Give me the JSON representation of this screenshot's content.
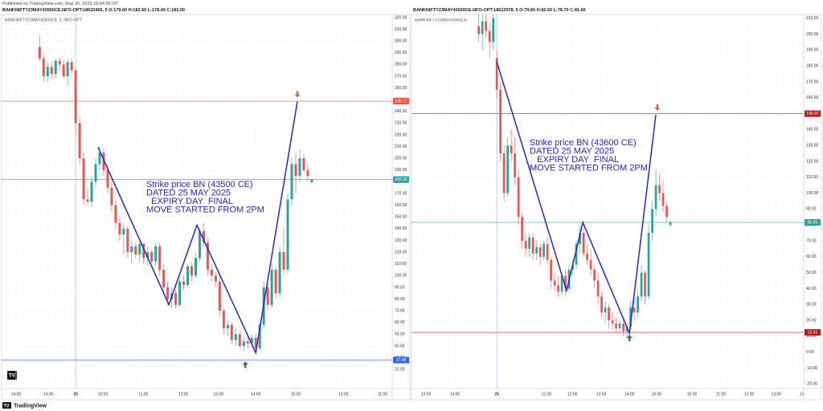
{
  "header": {
    "published": "Published on TradingView.com, May 25, 2023 16:54:09 IST"
  },
  "footer": {
    "brand": "TradingView"
  },
  "chart_data": [
    {
      "type": "candlestick",
      "title": "BANKNIFTY23MAY43500CE.NFO-OPT:18622466, 5 O:179.60 H:182.60 L:178.40 C:182.00",
      "subtitle": "BANKNIFTY23MAY43500CE, 5, NFO-OPT",
      "up_color": "#26a69a",
      "down_color": "#ef5350",
      "grid": true,
      "x": [
        -9,
        -8,
        -7,
        -6,
        -5,
        -4,
        -3,
        -2,
        -1,
        0,
        1,
        2,
        3,
        4,
        5,
        6,
        7,
        8,
        9,
        10,
        11,
        12,
        13,
        14,
        15,
        16,
        17,
        18,
        19,
        20,
        21,
        22,
        23,
        24,
        25,
        26,
        27,
        28,
        29,
        30,
        31,
        32,
        33,
        34,
        35,
        36,
        37,
        38,
        39,
        40,
        41,
        42,
        43,
        44,
        45,
        46,
        47,
        48,
        49,
        50,
        51,
        52,
        53,
        54,
        55,
        56,
        57,
        58,
        59
      ],
      "open": [
        295,
        285,
        270,
        278,
        272,
        283,
        280,
        270,
        282,
        275,
        230,
        200,
        165,
        163,
        180,
        195,
        205,
        190,
        175,
        160,
        145,
        135,
        140,
        120,
        125,
        118,
        127,
        115,
        120,
        112,
        125,
        105,
        90,
        80,
        85,
        75,
        95,
        92,
        108,
        100,
        115,
        138,
        128,
        105,
        100,
        95,
        70,
        55,
        58,
        45,
        50,
        40,
        44,
        42,
        47,
        38,
        58,
        90,
        75,
        105,
        85,
        120,
        105,
        165,
        195,
        185,
        200,
        190,
        179.6
      ],
      "high": [
        305,
        288,
        282,
        282,
        285,
        286,
        284,
        285,
        286,
        278,
        235,
        205,
        175,
        185,
        200,
        210,
        208,
        195,
        180,
        165,
        150,
        145,
        142,
        130,
        128,
        130,
        128,
        125,
        122,
        128,
        128,
        110,
        95,
        90,
        88,
        98,
        100,
        110,
        112,
        120,
        140,
        145,
        132,
        110,
        103,
        100,
        72,
        62,
        60,
        55,
        53,
        48,
        48,
        50,
        50,
        60,
        95,
        100,
        110,
        108,
        125,
        140,
        170,
        200,
        205,
        208,
        204,
        195,
        182.6
      ],
      "low": [
        283,
        265,
        265,
        268,
        268,
        275,
        268,
        262,
        272,
        220,
        195,
        160,
        160,
        158,
        175,
        190,
        185,
        170,
        155,
        140,
        130,
        118,
        115,
        110,
        115,
        112,
        110,
        108,
        110,
        108,
        100,
        85,
        75,
        72,
        72,
        73,
        88,
        90,
        95,
        98,
        112,
        125,
        100,
        95,
        90,
        65,
        50,
        48,
        42,
        40,
        38,
        36,
        38,
        40,
        35,
        36,
        55,
        70,
        72,
        80,
        82,
        100,
        102,
        160,
        170,
        180,
        188,
        180,
        178.4
      ],
      "close": [
        285,
        270,
        278,
        272,
        283,
        280,
        270,
        282,
        275,
        230,
        200,
        165,
        163,
        180,
        195,
        205,
        190,
        175,
        160,
        145,
        135,
        140,
        120,
        125,
        118,
        127,
        115,
        120,
        112,
        125,
        105,
        90,
        80,
        85,
        75,
        95,
        92,
        108,
        100,
        115,
        138,
        128,
        105,
        100,
        95,
        70,
        55,
        58,
        45,
        50,
        40,
        44,
        42,
        47,
        38,
        58,
        90,
        75,
        105,
        85,
        120,
        105,
        165,
        195,
        185,
        200,
        190,
        185,
        182
      ],
      "xlim": [
        -18.5,
        79.1
      ],
      "xticks": [
        {
          "value": -14.9,
          "label": "14:00"
        },
        {
          "value": -6.8,
          "label": "14:45"
        },
        {
          "value": 0,
          "label": "25"
        },
        {
          "value": 6.8,
          "label": "10:00"
        },
        {
          "value": 16.9,
          "label": "11:00"
        },
        {
          "value": 26.9,
          "label": "12:00"
        },
        {
          "value": 35.7,
          "label": "13:00"
        },
        {
          "value": 45,
          "label": "14:00"
        },
        {
          "value": 55,
          "label": "15:00"
        },
        {
          "value": 66.9,
          "label": "10:00"
        },
        {
          "value": 76.7,
          "label": "11:00"
        }
      ],
      "ylim": [
        3.7,
        322.7
      ],
      "yticks": [
        {
          "value": 20,
          "label": "20.00"
        },
        {
          "value": 30,
          "label": "30.00"
        },
        {
          "value": 40,
          "label": "40.00"
        },
        {
          "value": 50,
          "label": "50.00"
        },
        {
          "value": 60,
          "label": "60.00"
        },
        {
          "value": 70,
          "label": "70.00"
        },
        {
          "value": 80,
          "label": "80.00"
        },
        {
          "value": 90,
          "label": "90.00"
        },
        {
          "value": 100,
          "label": "100.00"
        },
        {
          "value": 110,
          "label": "110.00"
        },
        {
          "value": 120,
          "label": "120.00"
        },
        {
          "value": 130,
          "label": "130.00"
        },
        {
          "value": 140,
          "label": "140.00"
        },
        {
          "value": 150,
          "label": "150.00"
        },
        {
          "value": 160,
          "label": "160.00"
        },
        {
          "value": 170,
          "label": "170.00"
        },
        {
          "value": 180,
          "label": "180.00"
        },
        {
          "value": 190,
          "label": "190.00"
        },
        {
          "value": 200,
          "label": "200.00"
        },
        {
          "value": 210,
          "label": "210.00"
        },
        {
          "value": 220,
          "label": "220.00"
        },
        {
          "value": 230,
          "label": "230.00"
        },
        {
          "value": 240,
          "label": "240.00"
        },
        {
          "value": 250,
          "label": "250.00"
        },
        {
          "value": 260,
          "label": "260.00"
        },
        {
          "value": 270,
          "label": "270.00"
        },
        {
          "value": 280,
          "label": "280.00"
        },
        {
          "value": 290,
          "label": "290.00"
        },
        {
          "value": 300,
          "label": "300.00"
        },
        {
          "value": 310,
          "label": "310.00"
        },
        {
          "value": 320,
          "label": "320.00"
        }
      ],
      "levels": [
        {
          "value": 248.71,
          "color": "#ef5350"
        },
        {
          "value": 182,
          "label": "182.00",
          "color": "#26a69a"
        },
        {
          "value": 27.98,
          "color": "#2962ff"
        }
      ],
      "session_line": {
        "x": 0,
        "color": "#90b0ff"
      },
      "drawing": {
        "x": [
          5.6,
          23.3,
          30.3,
          45,
          55.4
        ],
        "y": [
          209.4,
          75.2,
          143,
          34.2,
          248.4
        ],
        "color": "#2424d8"
      },
      "markers": [
        {
          "x": 55.4,
          "y": 254.6,
          "direction": "down",
          "color": "#e0603a"
        },
        {
          "x": 42.4,
          "y": 24,
          "direction": "up",
          "color": "#2e7d32"
        }
      ],
      "annotation": [
        "Strike price BN (43500 CE)",
        "DATED 25 MAY 2025",
        "  EXPIRY DAY  FINAL",
        "MOVE STARTED FROM 2PM"
      ]
    },
    {
      "type": "candlestick",
      "title": "BANKNIFTY23MAY43600CE.NFO-OPT:18622978, 5 O:79.80 H:82.60 L:78.70 C:81.60",
      "subtitle": "BANKNIFTY23MAY43600CE",
      "up_color": "#26a69a",
      "down_color": "#ef5350",
      "grid": true,
      "x": [
        -5,
        -4,
        -3,
        -2,
        -1,
        0,
        1,
        2,
        3,
        4,
        5,
        6,
        7,
        8,
        9,
        10,
        11,
        12,
        13,
        14,
        15,
        16,
        17,
        18,
        19,
        20,
        21,
        22,
        23,
        24,
        25,
        26,
        27,
        28,
        29,
        30,
        31,
        32,
        33,
        34,
        35,
        36,
        37,
        38,
        39,
        40,
        41,
        42,
        43,
        44,
        45,
        46,
        47,
        48
      ],
      "open": [
        205,
        200,
        208,
        202,
        195,
        185,
        165,
        125,
        100,
        130,
        125,
        110,
        85,
        70,
        65,
        72,
        62,
        66,
        60,
        68,
        58,
        45,
        42,
        38,
        48,
        40,
        52,
        55,
        68,
        75,
        62,
        58,
        52,
        45,
        35,
        25,
        28,
        20,
        18,
        15,
        18,
        13,
        16,
        28,
        25,
        35,
        50,
        35,
        75,
        90,
        105,
        100,
        92,
        79.8
      ],
      "high": [
        213,
        212,
        213,
        208,
        215,
        190,
        170,
        130,
        135,
        140,
        135,
        115,
        88,
        75,
        75,
        75,
        70,
        68,
        70,
        72,
        60,
        50,
        48,
        50,
        52,
        55,
        58,
        70,
        80,
        78,
        68,
        65,
        55,
        50,
        38,
        32,
        30,
        25,
        22,
        20,
        20,
        18,
        32,
        35,
        40,
        55,
        52,
        80,
        95,
        115,
        112,
        108,
        95,
        82.6
      ],
      "low": [
        195,
        190,
        198,
        185,
        190,
        160,
        120,
        95,
        98,
        120,
        105,
        80,
        65,
        60,
        60,
        58,
        58,
        55,
        58,
        55,
        40,
        38,
        35,
        36,
        35,
        38,
        48,
        52,
        62,
        60,
        55,
        48,
        40,
        30,
        22,
        18,
        15,
        14,
        12,
        12,
        10,
        8,
        14,
        20,
        22,
        32,
        30,
        33,
        70,
        85,
        95,
        88,
        82,
        78.7
      ],
      "close": [
        200,
        208,
        202,
        195,
        210,
        165,
        125,
        100,
        130,
        125,
        110,
        85,
        70,
        65,
        72,
        62,
        66,
        60,
        68,
        58,
        45,
        42,
        38,
        48,
        40,
        52,
        55,
        68,
        75,
        62,
        58,
        52,
        45,
        35,
        25,
        28,
        20,
        18,
        15,
        18,
        13,
        16,
        28,
        25,
        35,
        50,
        35,
        75,
        90,
        105,
        100,
        92,
        85,
        81.6
      ],
      "xlim": [
        -23.6,
        84.9
      ],
      "xticks": [
        {
          "value": -19.6,
          "label": "13:00"
        },
        {
          "value": -11.6,
          "label": "14:00"
        },
        {
          "value": 0,
          "label": "25"
        },
        {
          "value": 13.8,
          "label": "11:00"
        },
        {
          "value": 20.9,
          "label": "12:00"
        },
        {
          "value": 28.9,
          "label": "13:00"
        },
        {
          "value": 36.7,
          "label": "14:00"
        },
        {
          "value": 44.2,
          "label": "15:00"
        },
        {
          "value": 54,
          "label": "10:00"
        },
        {
          "value": 62,
          "label": "11:00"
        },
        {
          "value": 69.8,
          "label": "12:00"
        },
        {
          "value": 77.3,
          "label": "13:00"
        },
        {
          "value": 84.4,
          "label": "14"
        }
      ],
      "ylim": [
        -22.9,
        212.4
      ],
      "yticks": [
        {
          "value": -20,
          "label": "-20.00"
        },
        {
          "value": -10,
          "label": "-10.00"
        },
        {
          "value": 0,
          "label": "0.00"
        },
        {
          "value": 10,
          "label": "10.00"
        },
        {
          "value": 20,
          "label": "20.00"
        },
        {
          "value": 30,
          "label": "30.00"
        },
        {
          "value": 40,
          "label": "40.00"
        },
        {
          "value": 50,
          "label": "50.00"
        },
        {
          "value": 60,
          "label": "60.00"
        },
        {
          "value": 70,
          "label": "70.00"
        },
        {
          "value": 80,
          "label": "80.00"
        },
        {
          "value": 90,
          "label": "90.00"
        },
        {
          "value": 100,
          "label": "100.00"
        },
        {
          "value": 110,
          "label": "110.00"
        },
        {
          "value": 120,
          "label": "120.00"
        },
        {
          "value": 130,
          "label": "130.00"
        },
        {
          "value": 140,
          "label": "140.00"
        },
        {
          "value": 150,
          "label": "150.00"
        },
        {
          "value": 160,
          "label": "160.00"
        },
        {
          "value": 170,
          "label": "170.00"
        },
        {
          "value": 180,
          "label": "180.00"
        },
        {
          "value": 190,
          "label": "190.00"
        },
        {
          "value": 200,
          "label": "200.00"
        },
        {
          "value": 210,
          "label": "210.00"
        }
      ],
      "levels": [
        {
          "value": 149.97,
          "color": "#b71c1c"
        },
        {
          "value": 81.6,
          "label": "81.60",
          "color": "#26a69a"
        },
        {
          "value": 12.41,
          "color": "#b71c1c"
        }
      ],
      "session_line": {
        "x": 0,
        "color": "#90b0ff"
      },
      "drawing": {
        "x": [
          0,
          19.3,
          23.8,
          36.7,
          44
        ],
        "y": [
          182.6,
          38.7,
          81.6,
          11.9,
          149.3
        ],
        "color": "#2424d8"
      },
      "markers": [
        {
          "x": 44.4,
          "y": 153.8,
          "direction": "down",
          "color": "#e0603a"
        },
        {
          "x": 36.7,
          "y": 8.9,
          "direction": "up",
          "color": "#2e7d32"
        }
      ],
      "annotation": [
        "Strike price BN (43600 CE)",
        "DATED 25 MAY 2025",
        "   EXPIRY DAY  FINAL",
        "MOVE STARTED FROM 2PM"
      ]
    }
  ]
}
